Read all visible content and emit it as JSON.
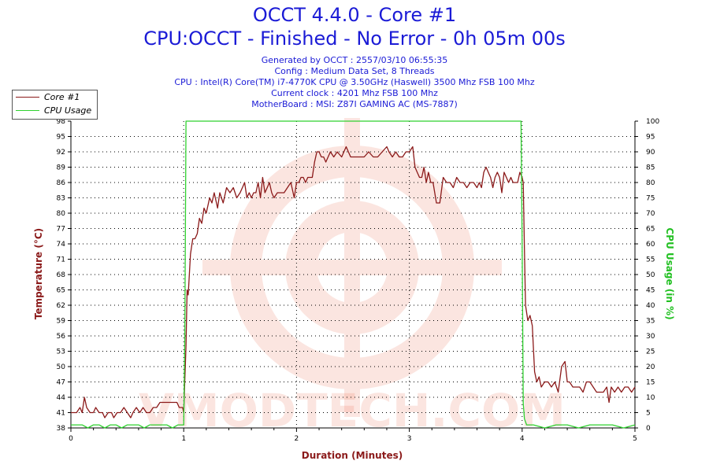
{
  "title": "OCCT 4.4.0 - Core #1",
  "subtitle": "CPU:OCCT - Finished - No Error - 0h 05m 00s",
  "info_lines": [
    "Generated by OCCT : 2557/03/10 06:55:35",
    "Config : Medium Data Set, 8 Threads",
    "CPU : Intel(R) Core(TM) i7-4770K CPU @ 3.50GHz (Haswell) 3500 Mhz FSB 100 Mhz",
    "Current clock : 4201 Mhz FSB 100 Mhz",
    "MotherBoard : MSI: Z87I GAMING AC (MS-7887)"
  ],
  "legend": [
    {
      "label": "Core #1",
      "color": "#8b1a1a"
    },
    {
      "label": "CPU Usage",
      "color": "#2fd12f"
    }
  ],
  "watermark": "VMODTECH.COM",
  "chart_data": {
    "type": "line",
    "xlabel": "Duration (Minutes)",
    "ylabel_left": "Temperature (°C)",
    "ylabel_right": "CPU Usage (in %)",
    "xlim": [
      0,
      5
    ],
    "ylim_left": [
      38,
      98
    ],
    "ylim_right": [
      0,
      100
    ],
    "x_ticks": [
      "0",
      "1",
      "2",
      "3",
      "4",
      "5"
    ],
    "y_ticks_left": [
      "38",
      "41",
      "44",
      "47",
      "50",
      "53",
      "56",
      "59",
      "62",
      "65",
      "68",
      "71",
      "74",
      "77",
      "80",
      "83",
      "86",
      "89",
      "92",
      "95",
      "98"
    ],
    "y_ticks_right": [
      "0",
      "5",
      "10",
      "15",
      "20",
      "25",
      "30",
      "35",
      "40",
      "45",
      "50",
      "55",
      "60",
      "65",
      "70",
      "75",
      "80",
      "85",
      "90",
      "95",
      "100"
    ],
    "grid": true,
    "legend_position": "top-left",
    "series": [
      {
        "name": "Core #1",
        "axis": "left",
        "color": "#8b1a1a",
        "points": [
          [
            0.0,
            41
          ],
          [
            0.05,
            41
          ],
          [
            0.08,
            42
          ],
          [
            0.1,
            41
          ],
          [
            0.12,
            44
          ],
          [
            0.14,
            42
          ],
          [
            0.17,
            41
          ],
          [
            0.2,
            41
          ],
          [
            0.22,
            42
          ],
          [
            0.25,
            41
          ],
          [
            0.28,
            41
          ],
          [
            0.3,
            40
          ],
          [
            0.33,
            41
          ],
          [
            0.36,
            41
          ],
          [
            0.38,
            40
          ],
          [
            0.41,
            41
          ],
          [
            0.44,
            41
          ],
          [
            0.47,
            42
          ],
          [
            0.5,
            41
          ],
          [
            0.53,
            40
          ],
          [
            0.55,
            41
          ],
          [
            0.58,
            42
          ],
          [
            0.61,
            41
          ],
          [
            0.64,
            42
          ],
          [
            0.67,
            41
          ],
          [
            0.7,
            41
          ],
          [
            0.73,
            42
          ],
          [
            0.76,
            42
          ],
          [
            0.79,
            43
          ],
          [
            0.82,
            43
          ],
          [
            0.86,
            43
          ],
          [
            0.9,
            43
          ],
          [
            0.94,
            43
          ],
          [
            0.96,
            42
          ],
          [
            0.99,
            42
          ],
          [
            1.0,
            41
          ],
          [
            1.02,
            54
          ],
          [
            1.03,
            65
          ],
          [
            1.04,
            64
          ],
          [
            1.06,
            72
          ],
          [
            1.08,
            75
          ],
          [
            1.1,
            75
          ],
          [
            1.12,
            76
          ],
          [
            1.14,
            79
          ],
          [
            1.16,
            78
          ],
          [
            1.18,
            81
          ],
          [
            1.2,
            80
          ],
          [
            1.23,
            83
          ],
          [
            1.25,
            82
          ],
          [
            1.27,
            84
          ],
          [
            1.3,
            81
          ],
          [
            1.32,
            84
          ],
          [
            1.35,
            82
          ],
          [
            1.38,
            85
          ],
          [
            1.41,
            84
          ],
          [
            1.44,
            85
          ],
          [
            1.47,
            83
          ],
          [
            1.5,
            84
          ],
          [
            1.52,
            85
          ],
          [
            1.54,
            86
          ],
          [
            1.56,
            83
          ],
          [
            1.58,
            84
          ],
          [
            1.6,
            83
          ],
          [
            1.62,
            84
          ],
          [
            1.64,
            84
          ],
          [
            1.66,
            86
          ],
          [
            1.68,
            83
          ],
          [
            1.7,
            87
          ],
          [
            1.72,
            84
          ],
          [
            1.74,
            85
          ],
          [
            1.76,
            86
          ],
          [
            1.78,
            84
          ],
          [
            1.8,
            83
          ],
          [
            1.83,
            84
          ],
          [
            1.86,
            84
          ],
          [
            1.89,
            84
          ],
          [
            1.92,
            85
          ],
          [
            1.95,
            86
          ],
          [
            1.98,
            83
          ],
          [
            2.0,
            86
          ],
          [
            2.02,
            86
          ],
          [
            2.04,
            87
          ],
          [
            2.06,
            87
          ],
          [
            2.08,
            86
          ],
          [
            2.1,
            87
          ],
          [
            2.12,
            87
          ],
          [
            2.14,
            87
          ],
          [
            2.16,
            90
          ],
          [
            2.18,
            92
          ],
          [
            2.2,
            92
          ],
          [
            2.22,
            91
          ],
          [
            2.24,
            91
          ],
          [
            2.26,
            90
          ],
          [
            2.28,
            91
          ],
          [
            2.3,
            92
          ],
          [
            2.33,
            91
          ],
          [
            2.36,
            92
          ],
          [
            2.4,
            91
          ],
          [
            2.44,
            93
          ],
          [
            2.48,
            91
          ],
          [
            2.52,
            91
          ],
          [
            2.56,
            91
          ],
          [
            2.6,
            91
          ],
          [
            2.64,
            92
          ],
          [
            2.68,
            91
          ],
          [
            2.72,
            91
          ],
          [
            2.76,
            92
          ],
          [
            2.8,
            93
          ],
          [
            2.82,
            92
          ],
          [
            2.85,
            91
          ],
          [
            2.88,
            92
          ],
          [
            2.91,
            91
          ],
          [
            2.94,
            91
          ],
          [
            2.97,
            92
          ],
          [
            3.0,
            92
          ],
          [
            3.03,
            93
          ],
          [
            3.05,
            89
          ],
          [
            3.07,
            88
          ],
          [
            3.09,
            87
          ],
          [
            3.11,
            87
          ],
          [
            3.13,
            89
          ],
          [
            3.15,
            86
          ],
          [
            3.17,
            88
          ],
          [
            3.19,
            86
          ],
          [
            3.21,
            86
          ],
          [
            3.24,
            82
          ],
          [
            3.27,
            82
          ],
          [
            3.3,
            87
          ],
          [
            3.33,
            86
          ],
          [
            3.36,
            86
          ],
          [
            3.39,
            85
          ],
          [
            3.42,
            87
          ],
          [
            3.45,
            86
          ],
          [
            3.48,
            86
          ],
          [
            3.51,
            85
          ],
          [
            3.54,
            86
          ],
          [
            3.57,
            86
          ],
          [
            3.6,
            85
          ],
          [
            3.62,
            86
          ],
          [
            3.64,
            85
          ],
          [
            3.66,
            88
          ],
          [
            3.68,
            89
          ],
          [
            3.7,
            88
          ],
          [
            3.72,
            87
          ],
          [
            3.74,
            85
          ],
          [
            3.76,
            87
          ],
          [
            3.78,
            88
          ],
          [
            3.8,
            87
          ],
          [
            3.82,
            84
          ],
          [
            3.84,
            88
          ],
          [
            3.86,
            87
          ],
          [
            3.88,
            86
          ],
          [
            3.9,
            87
          ],
          [
            3.92,
            86
          ],
          [
            3.94,
            86
          ],
          [
            3.96,
            86
          ],
          [
            3.98,
            88
          ],
          [
            4.0,
            87
          ],
          [
            4.01,
            86
          ],
          [
            4.02,
            73
          ],
          [
            4.03,
            62
          ],
          [
            4.05,
            59
          ],
          [
            4.07,
            60
          ],
          [
            4.09,
            58
          ],
          [
            4.11,
            49
          ],
          [
            4.13,
            47
          ],
          [
            4.15,
            48
          ],
          [
            4.17,
            46
          ],
          [
            4.2,
            47
          ],
          [
            4.23,
            47
          ],
          [
            4.26,
            46
          ],
          [
            4.29,
            47
          ],
          [
            4.32,
            45
          ],
          [
            4.35,
            50
          ],
          [
            4.38,
            51
          ],
          [
            4.4,
            47
          ],
          [
            4.42,
            47
          ],
          [
            4.45,
            46
          ],
          [
            4.48,
            46
          ],
          [
            4.51,
            46
          ],
          [
            4.54,
            45
          ],
          [
            4.57,
            47
          ],
          [
            4.6,
            47
          ],
          [
            4.63,
            46
          ],
          [
            4.66,
            45
          ],
          [
            4.69,
            45
          ],
          [
            4.72,
            45
          ],
          [
            4.75,
            46
          ],
          [
            4.77,
            43
          ],
          [
            4.79,
            46
          ],
          [
            4.82,
            45
          ],
          [
            4.85,
            46
          ],
          [
            4.88,
            45
          ],
          [
            4.91,
            46
          ],
          [
            4.94,
            46
          ],
          [
            4.97,
            45
          ],
          [
            5.0,
            46
          ]
        ]
      },
      {
        "name": "CPU Usage",
        "axis": "right",
        "color": "#2fd12f",
        "points": [
          [
            0.0,
            1
          ],
          [
            0.05,
            1
          ],
          [
            0.1,
            1
          ],
          [
            0.15,
            0
          ],
          [
            0.2,
            1
          ],
          [
            0.25,
            1
          ],
          [
            0.3,
            0
          ],
          [
            0.35,
            1
          ],
          [
            0.4,
            1
          ],
          [
            0.45,
            0
          ],
          [
            0.5,
            1
          ],
          [
            0.55,
            1
          ],
          [
            0.6,
            1
          ],
          [
            0.65,
            0
          ],
          [
            0.7,
            1
          ],
          [
            0.75,
            1
          ],
          [
            0.8,
            1
          ],
          [
            0.85,
            1
          ],
          [
            0.9,
            0
          ],
          [
            0.95,
            1
          ],
          [
            1.0,
            1
          ],
          [
            1.01,
            30
          ],
          [
            1.02,
            100
          ],
          [
            1.1,
            100
          ],
          [
            1.5,
            100
          ],
          [
            2.0,
            100
          ],
          [
            2.5,
            100
          ],
          [
            3.0,
            100
          ],
          [
            3.5,
            100
          ],
          [
            3.99,
            100
          ],
          [
            4.0,
            60
          ],
          [
            4.01,
            8
          ],
          [
            4.02,
            3
          ],
          [
            4.04,
            1
          ],
          [
            4.1,
            1
          ],
          [
            4.2,
            0
          ],
          [
            4.3,
            1
          ],
          [
            4.4,
            1
          ],
          [
            4.5,
            0
          ],
          [
            4.6,
            1
          ],
          [
            4.7,
            1
          ],
          [
            4.8,
            1
          ],
          [
            4.9,
            0
          ],
          [
            5.0,
            1
          ]
        ]
      }
    ]
  }
}
